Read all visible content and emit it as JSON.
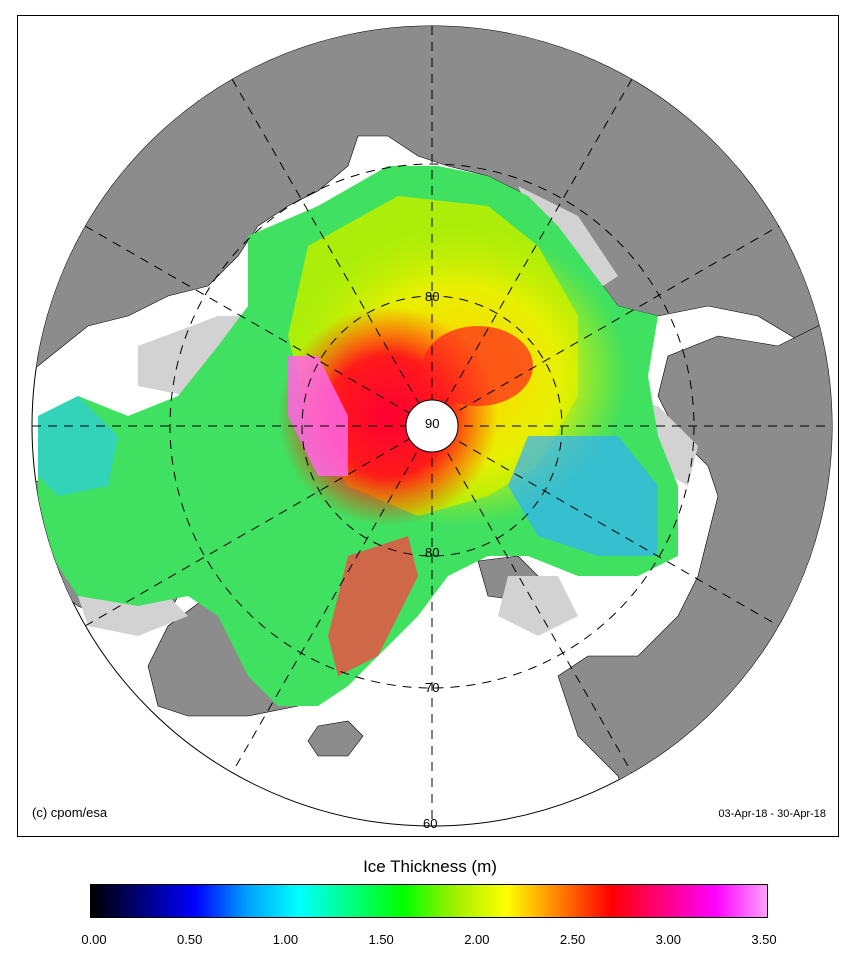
{
  "map": {
    "credit": "(c) cpom/esa",
    "date_range": "03-Apr-18 - 30-Apr-18",
    "latitude_labels": {
      "pole": "90",
      "lat80_top": "80",
      "lat80_bottom": "80",
      "lat70": "70",
      "lat60": "60"
    },
    "colors": {
      "land": "#8c8c8c",
      "ocean": "#ffffff",
      "no_data_ice": "#d2d2d2",
      "grid": "#000000"
    }
  },
  "legend": {
    "title": "Ice Thickness (m)",
    "ticks": [
      "0.00",
      "0.50",
      "1.00",
      "1.50",
      "2.00",
      "2.50",
      "3.00",
      "3.50"
    ],
    "range": [
      0.0,
      3.5
    ],
    "stops": [
      "#000000",
      "#000080",
      "#0000ff",
      "#00a0ff",
      "#00ffff",
      "#00ff80",
      "#00ff00",
      "#a0f000",
      "#ffff00",
      "#ff8000",
      "#ff0000",
      "#ff0080",
      "#ff00ff",
      "#ffa0ff"
    ]
  }
}
